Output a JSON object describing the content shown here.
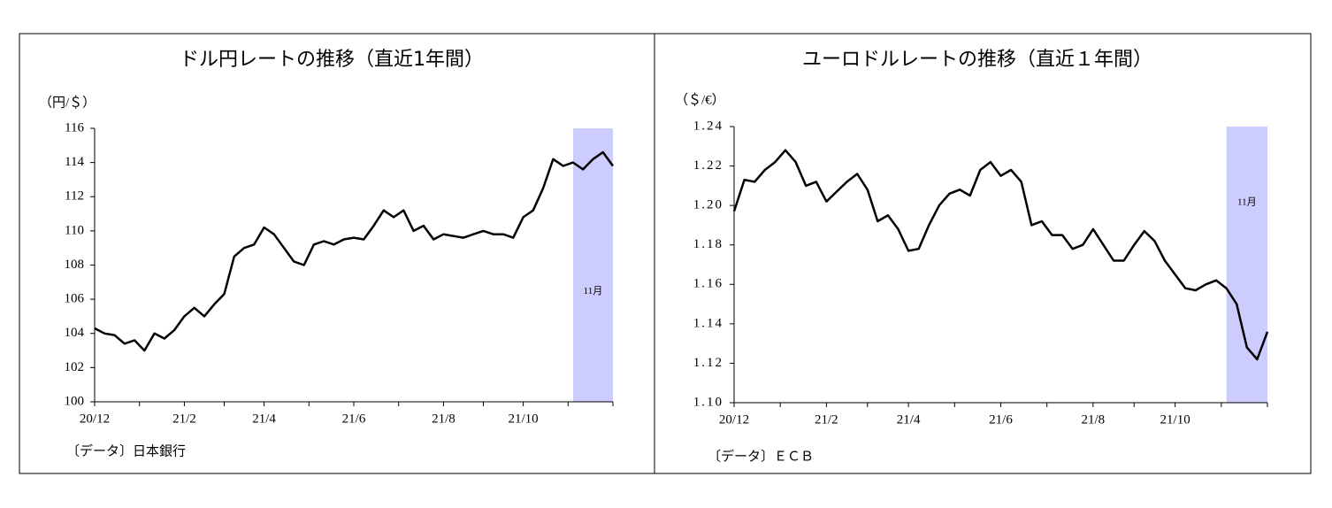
{
  "chart_data": [
    {
      "type": "line",
      "title": "ドル円レートの推移（直近1年間）",
      "ylabel": "（円/＄）",
      "source": "〔データ〕日本銀行",
      "categories": [
        "20/12",
        null,
        null,
        null,
        null,
        null,
        null,
        null,
        null,
        "21/2",
        null,
        null,
        null,
        null,
        null,
        null,
        null,
        "21/4",
        null,
        null,
        null,
        null,
        null,
        null,
        null,
        null,
        "21/6",
        null,
        null,
        null,
        null,
        null,
        null,
        null,
        null,
        "21/8",
        null,
        null,
        null,
        null,
        null,
        null,
        null,
        "21/10",
        null,
        null,
        null,
        null,
        null,
        null,
        null,
        null,
        null
      ],
      "color": "#000000",
      "values": [
        104.3,
        104.0,
        103.9,
        103.4,
        103.6,
        103.0,
        104.0,
        103.7,
        104.2,
        105.0,
        105.5,
        105.0,
        105.7,
        106.3,
        108.5,
        109.0,
        109.2,
        110.2,
        109.8,
        109.0,
        108.2,
        108.0,
        109.2,
        109.4,
        109.2,
        109.5,
        109.6,
        109.5,
        110.3,
        111.2,
        110.8,
        111.2,
        110.0,
        110.3,
        109.5,
        109.8,
        109.7,
        109.6,
        109.8,
        110.0,
        109.8,
        109.8,
        109.6,
        110.8,
        111.2,
        112.5,
        114.2,
        113.8,
        114.0,
        113.6,
        114.2,
        114.6,
        113.8
      ],
      "ylim": [
        100,
        116
      ],
      "yticks": [
        100,
        102,
        104,
        106,
        108,
        110,
        112,
        114,
        116
      ],
      "highlight": {
        "label": "11月",
        "from": 48,
        "to": 52,
        "color": "#ccccff"
      }
    },
    {
      "type": "line",
      "title": "ユーロドルレートの推移（直近１年間）",
      "ylabel": "（＄/€）",
      "source": "〔データ〕ＥＣＢ",
      "categories": [
        "20/12",
        null,
        null,
        null,
        null,
        null,
        null,
        null,
        null,
        "21/2",
        null,
        null,
        null,
        null,
        null,
        null,
        null,
        "21/4",
        null,
        null,
        null,
        null,
        null,
        null,
        null,
        null,
        "21/6",
        null,
        null,
        null,
        null,
        null,
        null,
        null,
        null,
        "21/8",
        null,
        null,
        null,
        null,
        null,
        null,
        null,
        "21/10",
        null,
        null,
        null,
        null,
        null,
        null,
        null,
        null,
        null
      ],
      "color": "#000000",
      "values": [
        1.197,
        1.213,
        1.212,
        1.218,
        1.222,
        1.228,
        1.222,
        1.21,
        1.212,
        1.202,
        1.207,
        1.212,
        1.216,
        1.208,
        1.192,
        1.195,
        1.188,
        1.177,
        1.178,
        1.19,
        1.2,
        1.206,
        1.208,
        1.205,
        1.218,
        1.222,
        1.215,
        1.218,
        1.212,
        1.19,
        1.192,
        1.185,
        1.185,
        1.178,
        1.18,
        1.188,
        1.18,
        1.172,
        1.172,
        1.18,
        1.187,
        1.182,
        1.172,
        1.165,
        1.158,
        1.157,
        1.16,
        1.162,
        1.158,
        1.15,
        1.128,
        1.122,
        1.136
      ],
      "ylim": [
        1.1,
        1.24
      ],
      "yticks": [
        {
          "value": 1.1,
          "label": "1.10"
        },
        1.12,
        1.14,
        1.16,
        1.18,
        {
          "value": 1.2,
          "label": "1.20"
        },
        1.22,
        1.24
      ],
      "highlight": {
        "label": "11月",
        "from": 48,
        "to": 52,
        "color": "#ccccff"
      }
    }
  ]
}
